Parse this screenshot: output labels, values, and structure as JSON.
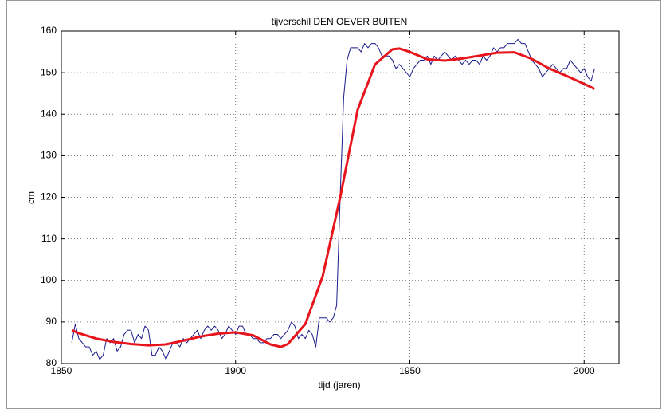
{
  "chart_data": {
    "type": "line",
    "title": "tijverschil DEN OEVER BUITEN",
    "xlabel": "tijd (jaren)",
    "ylabel": "cm",
    "xlim": [
      1850,
      2010
    ],
    "ylim": [
      80,
      160
    ],
    "xticks": [
      1850,
      1900,
      1950,
      2000
    ],
    "yticks": [
      80,
      90,
      100,
      110,
      120,
      130,
      140,
      150,
      160
    ],
    "grid": true,
    "series": [
      {
        "color": "#1a1a8c",
        "x": [
          1853,
          1854,
          1855,
          1856,
          1857,
          1858,
          1859,
          1860,
          1861,
          1862,
          1863,
          1864,
          1865,
          1866,
          1867,
          1868,
          1869,
          1870,
          1871,
          1872,
          1873,
          1874,
          1875,
          1876,
          1877,
          1878,
          1879,
          1880,
          1881,
          1882,
          1883,
          1884,
          1885,
          1886,
          1887,
          1888,
          1889,
          1890,
          1891,
          1892,
          1893,
          1894,
          1895,
          1896,
          1897,
          1898,
          1899,
          1900,
          1901,
          1902,
          1903,
          1904,
          1905,
          1906,
          1907,
          1908,
          1909,
          1910,
          1911,
          1912,
          1913,
          1914,
          1915,
          1916,
          1917,
          1918,
          1919,
          1920,
          1921,
          1922,
          1923,
          1924,
          1925,
          1926,
          1927,
          1928,
          1929,
          1930,
          1931,
          1932,
          1933,
          1934,
          1935,
          1936,
          1937,
          1938,
          1939,
          1940,
          1941,
          1942,
          1943,
          1944,
          1945,
          1946,
          1947,
          1948,
          1949,
          1950,
          1951,
          1952,
          1953,
          1954,
          1955,
          1956,
          1957,
          1958,
          1959,
          1960,
          1961,
          1962,
          1963,
          1964,
          1965,
          1966,
          1967,
          1968,
          1969,
          1970,
          1971,
          1972,
          1973,
          1974,
          1975,
          1976,
          1977,
          1978,
          1979,
          1980,
          1981,
          1982,
          1983,
          1984,
          1985,
          1986,
          1987,
          1988,
          1989,
          1990,
          1991,
          1992,
          1993,
          1994,
          1995,
          1996,
          1997,
          1998,
          1999,
          2000,
          2001,
          2002,
          2003
        ],
        "values": [
          85,
          89.5,
          86,
          85,
          84,
          84,
          82,
          83,
          81,
          82,
          86,
          85,
          86,
          83,
          84,
          87,
          88,
          88,
          85,
          87,
          86,
          89,
          88,
          82,
          82,
          84,
          83,
          81,
          83,
          85,
          85,
          84,
          86,
          85,
          86,
          87,
          88,
          86,
          88,
          89,
          88,
          89,
          88,
          86,
          87,
          89,
          88,
          87,
          89,
          89,
          87,
          87,
          86,
          86,
          85,
          85,
          86,
          86,
          87,
          87,
          86,
          87,
          88,
          90,
          89,
          86,
          87,
          86,
          88,
          87,
          84,
          91,
          91,
          91,
          90,
          91,
          94,
          120,
          144,
          153,
          156,
          156,
          156,
          155,
          157,
          156,
          157,
          157,
          156,
          154,
          154,
          154,
          153,
          151,
          152,
          151,
          150,
          149,
          151,
          152,
          153,
          153,
          154,
          152,
          154,
          153,
          154,
          155,
          154,
          153,
          154,
          153,
          152,
          153,
          152,
          153,
          153,
          152,
          154,
          153,
          154,
          156,
          155,
          156,
          156,
          157,
          157,
          157,
          158,
          157,
          157,
          155,
          153,
          152,
          151,
          149,
          150,
          151,
          152,
          151,
          150,
          151,
          151,
          153,
          152,
          151,
          150,
          151,
          149,
          148,
          151
        ]
      },
      {
        "color": "#e8141c",
        "x": [
          1853,
          1855,
          1860,
          1865,
          1870,
          1875,
          1880,
          1885,
          1890,
          1895,
          1900,
          1905,
          1910,
          1913,
          1915,
          1920,
          1925,
          1930,
          1935,
          1940,
          1945,
          1947,
          1950,
          1955,
          1960,
          1965,
          1970,
          1975,
          1980,
          1985,
          1990,
          1995,
          2000,
          2003
        ],
        "values": [
          88,
          87.3,
          86,
          85.2,
          84.7,
          84.4,
          84.6,
          85.5,
          86.5,
          87.2,
          87.5,
          86.8,
          84.6,
          84,
          84.7,
          89.5,
          101,
          120,
          141,
          152,
          155.6,
          155.8,
          155,
          153.2,
          152.9,
          153.4,
          154.1,
          154.8,
          154.9,
          153.3,
          151,
          149.2,
          147.3,
          146.1
        ]
      }
    ]
  }
}
